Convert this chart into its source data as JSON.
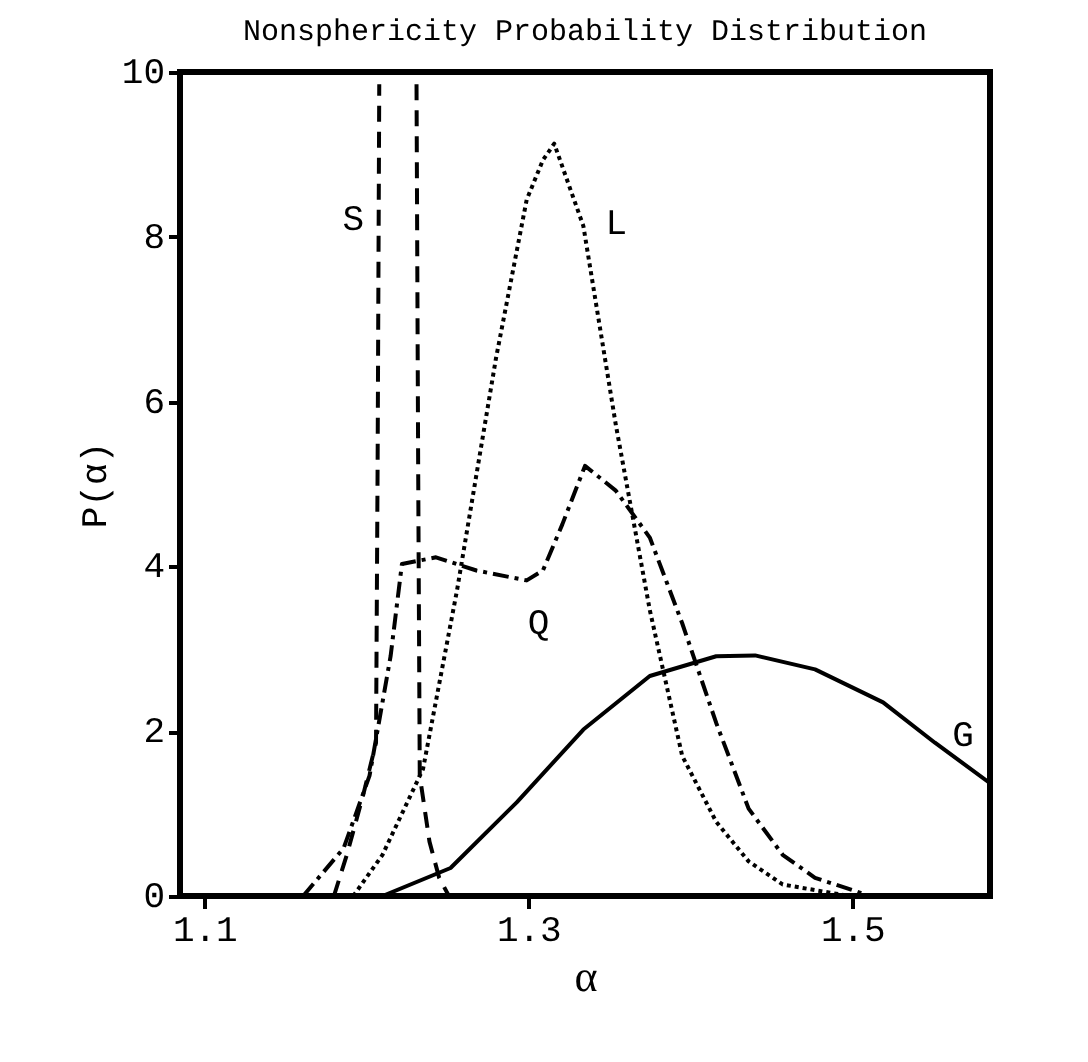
{
  "chart_data": {
    "type": "line",
    "title": "Nonsphericity Probability Distribution",
    "xlabel": "α",
    "ylabel": "P(α)",
    "xlim": [
      1.085,
      1.585
    ],
    "xticks": [
      1.1,
      1.3,
      1.5
    ],
    "ylim": [
      0,
      10
    ],
    "yticks": [
      0,
      2,
      4,
      6,
      8,
      10
    ],
    "grid": false,
    "marker": "none",
    "series": [
      {
        "name": "S",
        "color": "#000000",
        "line_style": "dashed",
        "x": [
          1.18,
          1.188,
          1.198,
          1.206,
          1.207,
          1.208,
          1.22,
          1.231,
          1.232,
          1.233,
          1.239,
          1.245,
          1.251
        ],
        "values": [
          0,
          0.5,
          1.22,
          1.86,
          5.3,
          9.85,
          null,
          9.85,
          5.3,
          1.46,
          0.66,
          0.22,
          0
        ]
      },
      {
        "name": "L",
        "color": "#000000",
        "line_style": "dotted",
        "x": [
          1.192,
          1.21,
          1.235,
          1.256,
          1.28,
          1.299,
          1.309,
          1.316,
          1.334,
          1.354,
          1.375,
          1.395,
          1.416,
          1.436,
          1.457,
          1.498
        ],
        "values": [
          0,
          0.5,
          1.54,
          3.71,
          6.52,
          8.45,
          8.93,
          9.13,
          8.13,
          5.72,
          3.47,
          1.7,
          0.9,
          0.42,
          0.14,
          0
        ]
      },
      {
        "name": "Q",
        "color": "#000000",
        "line_style": "dashdot",
        "x": [
          1.161,
          1.186,
          1.202,
          1.215,
          1.222,
          1.243,
          1.268,
          1.299,
          1.309,
          1.321,
          1.335,
          1.354,
          1.375,
          1.395,
          1.416,
          1.436,
          1.457,
          1.477,
          1.502,
          1.51
        ],
        "values": [
          0,
          0.58,
          1.46,
          2.91,
          4.03,
          4.11,
          3.95,
          3.83,
          3.95,
          4.51,
          5.22,
          4.92,
          4.35,
          3.31,
          2.1,
          1.06,
          0.5,
          0.22,
          0.06,
          0
        ]
      },
      {
        "name": "G",
        "color": "#000000",
        "line_style": "solid",
        "x": [
          1.21,
          1.252,
          1.293,
          1.334,
          1.375,
          1.416,
          1.44,
          1.477,
          1.519,
          1.551,
          1.585
        ],
        "values": [
          0,
          0.34,
          1.14,
          2.02,
          2.67,
          2.91,
          2.92,
          2.75,
          2.35,
          1.86,
          1.37
        ]
      }
    ]
  }
}
